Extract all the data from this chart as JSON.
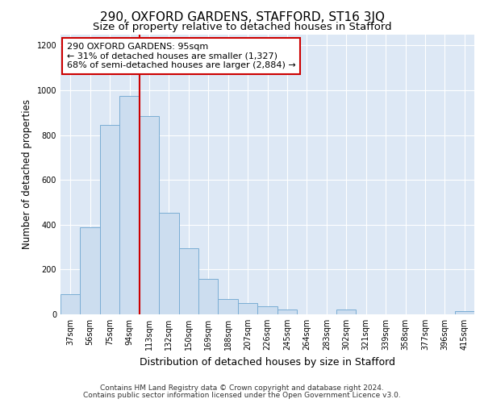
{
  "title": "290, OXFORD GARDENS, STAFFORD, ST16 3JQ",
  "subtitle": "Size of property relative to detached houses in Stafford",
  "xlabel": "Distribution of detached houses by size in Stafford",
  "ylabel": "Number of detached properties",
  "categories": [
    "37sqm",
    "56sqm",
    "75sqm",
    "94sqm",
    "113sqm",
    "132sqm",
    "150sqm",
    "169sqm",
    "188sqm",
    "207sqm",
    "226sqm",
    "245sqm",
    "264sqm",
    "283sqm",
    "302sqm",
    "321sqm",
    "339sqm",
    "358sqm",
    "377sqm",
    "396sqm",
    "415sqm"
  ],
  "values": [
    90,
    390,
    845,
    975,
    885,
    455,
    295,
    160,
    70,
    50,
    35,
    20,
    0,
    0,
    20,
    0,
    0,
    0,
    0,
    0,
    15
  ],
  "bar_color": "#ccddef",
  "bar_edgecolor": "#7aadd4",
  "vline_color": "#cc0000",
  "vline_x": 3.5,
  "annotation_text": "290 OXFORD GARDENS: 95sqm\n← 31% of detached houses are smaller (1,327)\n68% of semi-detached houses are larger (2,884) →",
  "annotation_box_facecolor": "#ffffff",
  "annotation_box_edgecolor": "#cc0000",
  "ylim": [
    0,
    1250
  ],
  "yticks": [
    0,
    200,
    400,
    600,
    800,
    1000,
    1200
  ],
  "plot_bg_color": "#dde8f5",
  "grid_color": "#ffffff",
  "footer_line1": "Contains HM Land Registry data © Crown copyright and database right 2024.",
  "footer_line2": "Contains public sector information licensed under the Open Government Licence v3.0.",
  "title_fontsize": 11,
  "subtitle_fontsize": 9.5,
  "xlabel_fontsize": 9,
  "ylabel_fontsize": 8.5,
  "tick_fontsize": 7,
  "annotation_fontsize": 8,
  "footer_fontsize": 6.5
}
